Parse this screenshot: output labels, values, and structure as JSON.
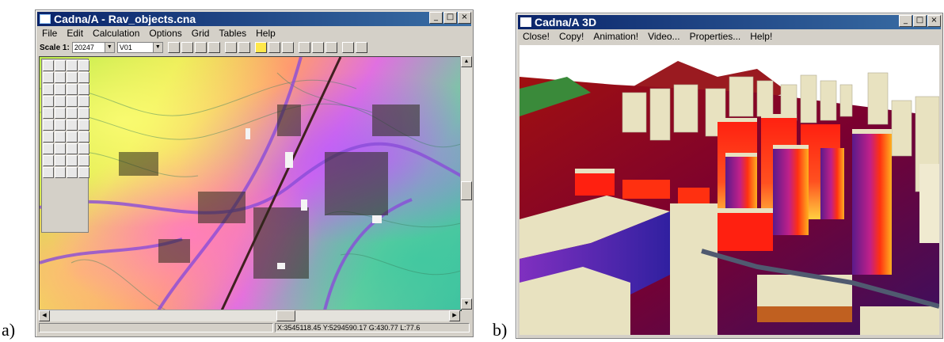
{
  "labels": {
    "a": "a)",
    "b": "b)"
  },
  "window_a": {
    "title": "Cadna/A - Rav_objects.cna",
    "menu": [
      "File",
      "Edit",
      "Calculation",
      "Options",
      "Grid",
      "Tables",
      "Help"
    ],
    "toolbar": {
      "scale_label": "Scale 1:",
      "scale_value": "20247",
      "layer_value": "V01"
    },
    "status": "X:3545118.45 Y:5294590.17 G:430.77 L:77.6"
  },
  "window_b": {
    "title": "Cadna/A 3D",
    "menu": [
      "Close!",
      "Copy!",
      "Animation!",
      "Video...",
      "Properties...",
      "Help!"
    ]
  },
  "colors": {
    "titlebar_start": "#0a246a",
    "titlebar_end": "#3a6ea5",
    "chrome": "#d4d0c8",
    "sky": "#ffffff",
    "terrain": "#8b0010",
    "building_top": "#e8e2c0"
  },
  "icons": {
    "minimize": "minimize-icon",
    "maximize": "maximize-icon",
    "close": "close-icon"
  }
}
